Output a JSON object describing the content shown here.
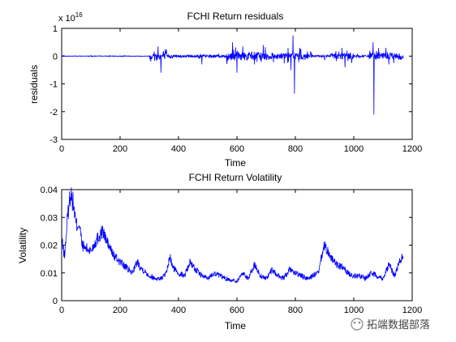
{
  "chart_data": [
    {
      "type": "line",
      "title": "FCHI Return residuals",
      "xlabel": "Time",
      "ylabel": "residuals",
      "xlim": [
        0,
        1200
      ],
      "ylim": [
        -3,
        1
      ],
      "y_exponent_label": "x 10",
      "y_exponent_power": "16",
      "xticks": [
        0,
        200,
        400,
        600,
        800,
        1000,
        1200
      ],
      "yticks": [
        -3,
        -2,
        -1,
        0,
        1
      ],
      "grid": false,
      "series_color": "#0000ff",
      "spikes": [
        {
          "x": 330,
          "y": 0.35
        },
        {
          "x": 340,
          "y": -0.6
        },
        {
          "x": 355,
          "y": 0.25
        },
        {
          "x": 480,
          "y": -0.3
        },
        {
          "x": 585,
          "y": 0.5
        },
        {
          "x": 600,
          "y": -0.6
        },
        {
          "x": 620,
          "y": 0.35
        },
        {
          "x": 660,
          "y": -0.3
        },
        {
          "x": 690,
          "y": 0.4
        },
        {
          "x": 775,
          "y": 0.3
        },
        {
          "x": 785,
          "y": -0.5
        },
        {
          "x": 792,
          "y": 0.75
        },
        {
          "x": 797,
          "y": -1.35
        },
        {
          "x": 815,
          "y": 0.3
        },
        {
          "x": 900,
          "y": -0.15
        },
        {
          "x": 960,
          "y": 0.3
        },
        {
          "x": 970,
          "y": -0.4
        },
        {
          "x": 1055,
          "y": 0.2
        },
        {
          "x": 1066,
          "y": 0.5
        },
        {
          "x": 1069,
          "y": -2.1
        },
        {
          "x": 1085,
          "y": 0.3
        },
        {
          "x": 1110,
          "y": 0.3
        },
        {
          "x": 1120,
          "y": -0.3
        }
      ]
    },
    {
      "type": "line",
      "title": "FCHI Return Volatility",
      "xlabel": "Time",
      "ylabel": "Volatility",
      "xlim": [
        0,
        1200
      ],
      "ylim": [
        0,
        0.04
      ],
      "xticks": [
        0,
        200,
        400,
        600,
        800,
        1000,
        1200
      ],
      "yticks": [
        0,
        0.01,
        0.02,
        0.03,
        0.04
      ],
      "ytick_labels": [
        "0",
        "0.01",
        "0.02",
        "0.03",
        "0.04"
      ],
      "grid": false,
      "series_color": "#0000ff",
      "x": [
        0,
        10,
        20,
        30,
        40,
        50,
        60,
        70,
        80,
        100,
        120,
        140,
        160,
        180,
        200,
        220,
        240,
        260,
        270,
        280,
        300,
        320,
        340,
        360,
        370,
        380,
        400,
        420,
        440,
        460,
        480,
        500,
        520,
        540,
        560,
        580,
        600,
        620,
        640,
        660,
        680,
        700,
        720,
        740,
        760,
        780,
        800,
        820,
        840,
        860,
        880,
        890,
        900,
        920,
        940,
        960,
        980,
        1000,
        1020,
        1040,
        1060,
        1080,
        1100,
        1120,
        1140,
        1160,
        1170
      ],
      "y": [
        0.022,
        0.016,
        0.03,
        0.039,
        0.035,
        0.027,
        0.028,
        0.02,
        0.019,
        0.018,
        0.022,
        0.025,
        0.02,
        0.016,
        0.014,
        0.012,
        0.01,
        0.014,
        0.012,
        0.011,
        0.009,
        0.008,
        0.008,
        0.01,
        0.016,
        0.012,
        0.01,
        0.009,
        0.014,
        0.011,
        0.009,
        0.008,
        0.01,
        0.009,
        0.008,
        0.0075,
        0.007,
        0.01,
        0.008,
        0.013,
        0.009,
        0.008,
        0.011,
        0.009,
        0.008,
        0.011,
        0.01,
        0.009,
        0.008,
        0.009,
        0.01,
        0.016,
        0.02,
        0.016,
        0.013,
        0.012,
        0.01,
        0.009,
        0.009,
        0.008,
        0.01,
        0.009,
        0.008,
        0.013,
        0.009,
        0.015,
        0.016
      ]
    }
  ],
  "watermark": {
    "text": "拓端数据部落"
  }
}
